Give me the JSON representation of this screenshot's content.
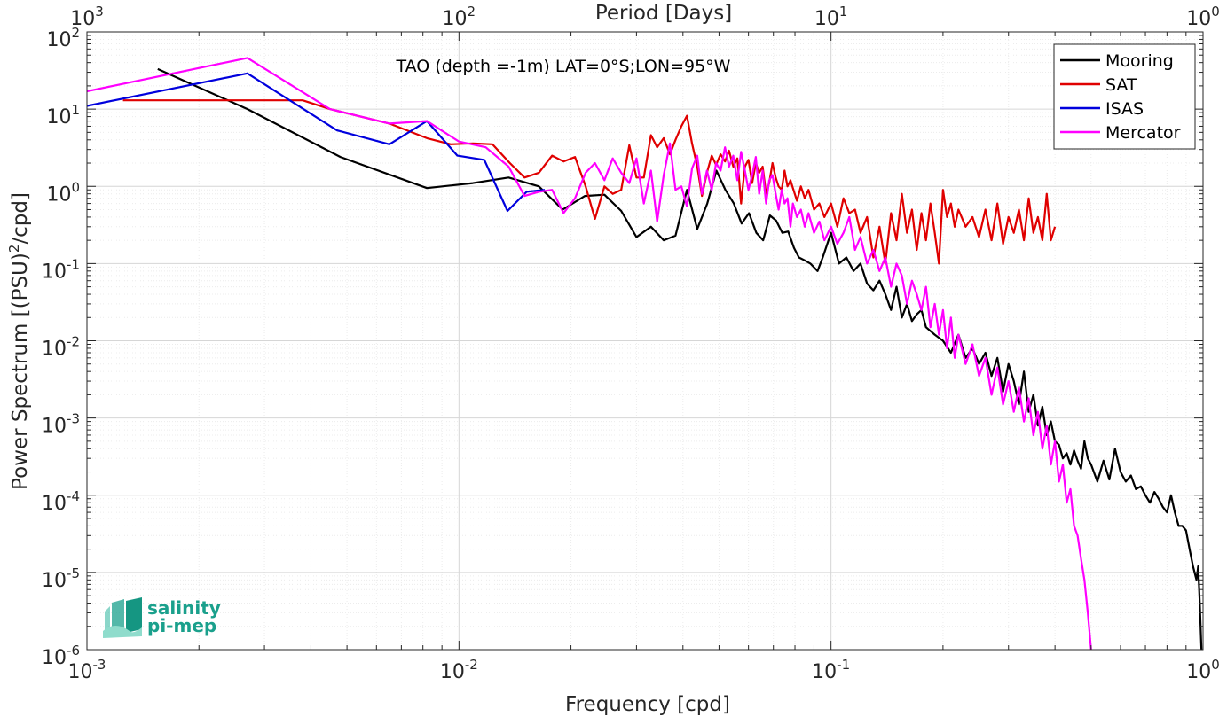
{
  "chart_data": {
    "type": "line",
    "title": "TAO (depth =-1m) LAT=0°S;LON=95°W",
    "xlabel": "Frequency [cpd]",
    "ylabel": "Power Spectrum [(PSU)^2/cpd]",
    "x2label": "Period [Days]",
    "xscale": "log",
    "yscale": "log",
    "xlim": [
      0.001,
      1
    ],
    "ylim": [
      1e-06,
      100
    ],
    "grid": true,
    "legend_position": "top-right",
    "x_ticks": [
      {
        "base": "10",
        "exp": "-3"
      },
      {
        "base": "10",
        "exp": "-2"
      },
      {
        "base": "10",
        "exp": "-1"
      },
      {
        "base": "10",
        "exp": "0"
      }
    ],
    "x2_ticks": [
      {
        "base": "10",
        "exp": "3"
      },
      {
        "base": "10",
        "exp": "2"
      },
      {
        "base": "10",
        "exp": "1"
      },
      {
        "base": "10",
        "exp": "0"
      }
    ],
    "y_ticks": [
      {
        "base": "10",
        "exp": "2"
      },
      {
        "base": "10",
        "exp": "1"
      },
      {
        "base": "10",
        "exp": "0"
      },
      {
        "base": "10",
        "exp": "-1"
      },
      {
        "base": "10",
        "exp": "-2"
      },
      {
        "base": "10",
        "exp": "-3"
      },
      {
        "base": "10",
        "exp": "-4"
      },
      {
        "base": "10",
        "exp": "-5"
      },
      {
        "base": "10",
        "exp": "-6"
      }
    ],
    "series": [
      {
        "name": "Mooring",
        "color": "#000000",
        "x": [
          0.00155,
          0.0027,
          0.0048,
          0.0082,
          0.0109,
          0.0136,
          0.0164,
          0.019,
          0.0218,
          0.0246,
          0.0273,
          0.03,
          0.0328,
          0.0355,
          0.0382,
          0.041,
          0.0437,
          0.0465,
          0.0492,
          0.052,
          0.0548,
          0.0575,
          0.0602,
          0.063,
          0.0657,
          0.0685,
          0.0712,
          0.074,
          0.0767,
          0.0795,
          0.082,
          0.085,
          0.088,
          0.092,
          0.095,
          0.1,
          0.105,
          0.11,
          0.115,
          0.12,
          0.125,
          0.13,
          0.135,
          0.14,
          0.145,
          0.15,
          0.155,
          0.16,
          0.165,
          0.17,
          0.175,
          0.18,
          0.19,
          0.2,
          0.21,
          0.22,
          0.23,
          0.24,
          0.25,
          0.26,
          0.27,
          0.28,
          0.29,
          0.3,
          0.31,
          0.32,
          0.33,
          0.34,
          0.35,
          0.36,
          0.37,
          0.38,
          0.39,
          0.4,
          0.41,
          0.42,
          0.43,
          0.44,
          0.45,
          0.46,
          0.47,
          0.48,
          0.49,
          0.5,
          0.52,
          0.54,
          0.56,
          0.58,
          0.6,
          0.62,
          0.64,
          0.66,
          0.68,
          0.7,
          0.72,
          0.74,
          0.76,
          0.78,
          0.8,
          0.82,
          0.84,
          0.86,
          0.88,
          0.9,
          0.92,
          0.94,
          0.96,
          0.97,
          0.98,
          0.99
        ],
        "y": [
          33,
          10,
          2.4,
          0.95,
          1.1,
          1.3,
          1.0,
          0.5,
          0.75,
          0.78,
          0.48,
          0.22,
          0.3,
          0.2,
          0.23,
          0.9,
          0.28,
          0.6,
          1.6,
          0.9,
          0.6,
          0.33,
          0.45,
          0.25,
          0.2,
          0.42,
          0.36,
          0.25,
          0.26,
          0.16,
          0.12,
          0.11,
          0.1,
          0.08,
          0.12,
          0.25,
          0.1,
          0.12,
          0.08,
          0.1,
          0.055,
          0.045,
          0.06,
          0.04,
          0.025,
          0.05,
          0.02,
          0.03,
          0.018,
          0.022,
          0.025,
          0.015,
          0.012,
          0.01,
          0.007,
          0.012,
          0.006,
          0.008,
          0.005,
          0.007,
          0.0035,
          0.006,
          0.0022,
          0.005,
          0.003,
          0.0015,
          0.004,
          0.0012,
          0.002,
          0.0008,
          0.0014,
          0.0006,
          0.0009,
          0.0005,
          0.00045,
          0.0003,
          0.00035,
          0.00025,
          0.00038,
          0.00028,
          0.00022,
          0.0005,
          0.0003,
          0.00025,
          0.00015,
          0.00028,
          0.00016,
          0.0004,
          0.0002,
          0.00015,
          0.00018,
          0.00012,
          0.00013,
          0.0001,
          8e-05,
          0.00011,
          9e-05,
          7e-05,
          6e-05,
          0.0001,
          6e-05,
          4e-05,
          4e-05,
          3.5e-05,
          2e-05,
          1.2e-05,
          8e-06,
          1.2e-05,
          4e-06,
          1e-06
        ]
      },
      {
        "name": "SAT",
        "color": "#e00000",
        "x": [
          0.00125,
          0.0025,
          0.0038,
          0.0045,
          0.0065,
          0.0082,
          0.0095,
          0.0109,
          0.0123,
          0.0137,
          0.015,
          0.0164,
          0.0178,
          0.0191,
          0.0205,
          0.0219,
          0.0232,
          0.0246,
          0.0259,
          0.0273,
          0.0287,
          0.03,
          0.0314,
          0.0328,
          0.0341,
          0.0355,
          0.0369,
          0.0382,
          0.0396,
          0.041,
          0.0423,
          0.0437,
          0.045,
          0.0464,
          0.0478,
          0.0491,
          0.0505,
          0.0519,
          0.0532,
          0.0546,
          0.056,
          0.0573,
          0.0587,
          0.06,
          0.0614,
          0.0628,
          0.0641,
          0.0655,
          0.0669,
          0.0682,
          0.0696,
          0.071,
          0.0723,
          0.0737,
          0.075,
          0.0764,
          0.0778,
          0.079,
          0.081,
          0.083,
          0.085,
          0.087,
          0.09,
          0.093,
          0.096,
          0.1,
          0.104,
          0.108,
          0.112,
          0.116,
          0.12,
          0.125,
          0.13,
          0.135,
          0.14,
          0.145,
          0.15,
          0.155,
          0.16,
          0.165,
          0.17,
          0.175,
          0.18,
          0.185,
          0.19,
          0.195,
          0.2,
          0.205,
          0.21,
          0.215,
          0.22,
          0.23,
          0.24,
          0.25,
          0.26,
          0.27,
          0.28,
          0.29,
          0.3,
          0.31,
          0.32,
          0.33,
          0.34,
          0.35,
          0.36,
          0.37,
          0.38,
          0.39,
          0.4
        ],
        "y": [
          13,
          13,
          13,
          10,
          6.5,
          4.2,
          3.5,
          3.6,
          3.5,
          2.0,
          1.3,
          1.5,
          2.5,
          2.1,
          2.4,
          1.0,
          0.38,
          1.0,
          0.8,
          0.9,
          3.4,
          1.3,
          1.3,
          4.6,
          3.2,
          4.2,
          2.6,
          4.0,
          6.0,
          8.2,
          3.6,
          1.8,
          0.75,
          1.5,
          2.5,
          1.9,
          2.6,
          2.1,
          2.9,
          1.8,
          2.3,
          0.6,
          1.8,
          2.2,
          1.1,
          2.0,
          1.5,
          1.8,
          0.8,
          1.1,
          2.0,
          1.3,
          1.0,
          0.9,
          1.6,
          1.0,
          1.2,
          0.95,
          0.65,
          1.0,
          0.7,
          0.9,
          0.5,
          0.6,
          0.4,
          0.6,
          0.3,
          0.7,
          0.45,
          0.5,
          0.25,
          0.4,
          0.12,
          0.3,
          0.1,
          0.45,
          0.2,
          0.8,
          0.25,
          0.5,
          0.15,
          0.45,
          0.2,
          0.6,
          0.25,
          0.1,
          0.9,
          0.4,
          0.6,
          0.3,
          0.5,
          0.3,
          0.4,
          0.22,
          0.5,
          0.2,
          0.6,
          0.18,
          0.4,
          0.25,
          0.5,
          0.2,
          0.7,
          0.25,
          0.4,
          0.2,
          0.8,
          0.2,
          0.3
        ]
      },
      {
        "name": "ISAS",
        "color": "#0000dd",
        "x": [
          0.001,
          0.0027,
          0.0047,
          0.0065,
          0.0082,
          0.0099,
          0.0117,
          0.0135,
          0.0152,
          0.017
        ],
        "y": [
          11,
          29,
          5.3,
          3.5,
          7.0,
          2.5,
          2.2,
          0.48,
          0.85,
          0.9
        ]
      },
      {
        "name": "Mercator",
        "color": "#ff00ff",
        "x": [
          0.001,
          0.0027,
          0.0045,
          0.0065,
          0.0082,
          0.01,
          0.0118,
          0.0136,
          0.015,
          0.0164,
          0.0178,
          0.0191,
          0.0205,
          0.0219,
          0.0232,
          0.0246,
          0.0259,
          0.0273,
          0.0287,
          0.03,
          0.0314,
          0.0328,
          0.0341,
          0.0355,
          0.0369,
          0.0382,
          0.0396,
          0.041,
          0.0423,
          0.0437,
          0.045,
          0.0464,
          0.0478,
          0.0491,
          0.0505,
          0.0519,
          0.0532,
          0.0546,
          0.056,
          0.0573,
          0.0587,
          0.06,
          0.0614,
          0.0628,
          0.0641,
          0.0655,
          0.0669,
          0.0682,
          0.0696,
          0.071,
          0.0723,
          0.0737,
          0.075,
          0.0764,
          0.0778,
          0.079,
          0.081,
          0.083,
          0.085,
          0.087,
          0.09,
          0.093,
          0.096,
          0.1,
          0.104,
          0.108,
          0.112,
          0.116,
          0.12,
          0.125,
          0.13,
          0.135,
          0.14,
          0.145,
          0.15,
          0.155,
          0.16,
          0.165,
          0.17,
          0.175,
          0.18,
          0.185,
          0.19,
          0.195,
          0.2,
          0.205,
          0.21,
          0.215,
          0.22,
          0.23,
          0.24,
          0.25,
          0.26,
          0.27,
          0.28,
          0.29,
          0.3,
          0.31,
          0.32,
          0.33,
          0.34,
          0.35,
          0.36,
          0.37,
          0.38,
          0.39,
          0.4,
          0.41,
          0.42,
          0.43,
          0.44,
          0.45,
          0.46,
          0.47,
          0.48,
          0.49,
          0.5
        ],
        "y": [
          17,
          46,
          10,
          6.5,
          7.0,
          3.8,
          3.2,
          1.8,
          0.75,
          0.85,
          0.9,
          0.45,
          0.7,
          1.5,
          2.0,
          1.2,
          2.3,
          1.5,
          1.1,
          2.3,
          0.6,
          1.6,
          0.35,
          1.4,
          3.6,
          0.9,
          1.0,
          0.55,
          1.7,
          2.5,
          0.8,
          1.6,
          0.9,
          2.0,
          1.6,
          3.2,
          1.8,
          2.5,
          1.2,
          2.8,
          1.6,
          0.9,
          1.4,
          2.4,
          0.8,
          1.6,
          0.6,
          1.2,
          1.4,
          0.8,
          0.5,
          0.9,
          0.6,
          0.7,
          0.3,
          0.6,
          0.4,
          0.5,
          0.3,
          0.45,
          0.25,
          0.35,
          0.2,
          0.3,
          0.18,
          0.25,
          0.4,
          0.15,
          0.22,
          0.1,
          0.15,
          0.08,
          0.12,
          0.05,
          0.1,
          0.07,
          0.03,
          0.06,
          0.04,
          0.025,
          0.05,
          0.015,
          0.03,
          0.012,
          0.025,
          0.008,
          0.02,
          0.006,
          0.012,
          0.005,
          0.009,
          0.0035,
          0.006,
          0.002,
          0.0045,
          0.0015,
          0.003,
          0.0012,
          0.0025,
          0.0009,
          0.0018,
          0.0006,
          0.0012,
          0.0004,
          0.0008,
          0.00025,
          0.0005,
          0.00015,
          0.00025,
          8e-05,
          0.00012,
          4e-05,
          3e-05,
          1.5e-05,
          8e-06,
          3e-06,
          1e-06
        ]
      }
    ]
  },
  "logo": {
    "line1": "salinity",
    "line2": "pi-mep",
    "color": "#1aa08c"
  }
}
